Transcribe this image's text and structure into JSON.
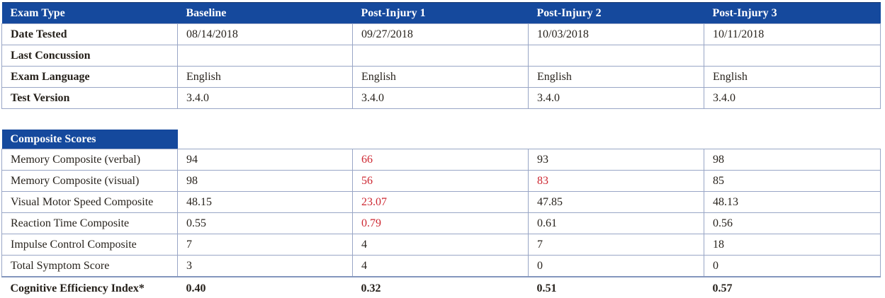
{
  "colors": {
    "header_blue": "#15499d",
    "alert_red": "#cd2832",
    "border": "#99a6c6",
    "header_text": "#ffffff",
    "body_text": "#28231d"
  },
  "exam_table": {
    "columns": [
      "Exam Type",
      "Baseline",
      "Post-Injury 1",
      "Post-Injury 2",
      "Post-Injury 3"
    ],
    "rows": [
      {
        "label": "Date Tested",
        "values": [
          "08/14/2018",
          "09/27/2018",
          "10/03/2018",
          "10/11/2018"
        ]
      },
      {
        "label": "Last Concussion",
        "values": [
          "",
          "",
          "",
          ""
        ]
      },
      {
        "label": "Exam Language",
        "values": [
          "English",
          "English",
          "English",
          "English"
        ]
      },
      {
        "label": "Test Version",
        "values": [
          "3.4.0",
          "3.4.0",
          "3.4.0",
          "3.4.0"
        ]
      }
    ]
  },
  "composite_table": {
    "title": "Composite Scores",
    "rows": [
      {
        "label": "Memory Composite (verbal)",
        "values": [
          "94",
          "66",
          "93",
          "98"
        ],
        "red": [
          false,
          true,
          false,
          false
        ]
      },
      {
        "label": "Memory Composite (visual)",
        "values": [
          "98",
          "56",
          "83",
          "85"
        ],
        "red": [
          false,
          true,
          true,
          false
        ]
      },
      {
        "label": "Visual Motor Speed Composite",
        "values": [
          "48.15",
          "23.07",
          "47.85",
          "48.13"
        ],
        "red": [
          false,
          true,
          false,
          false
        ]
      },
      {
        "label": "Reaction Time Composite",
        "values": [
          "0.55",
          "0.79",
          "0.61",
          "0.56"
        ],
        "red": [
          false,
          true,
          false,
          false
        ]
      },
      {
        "label": "Impulse Control Composite",
        "values": [
          "7",
          "4",
          "7",
          "18"
        ],
        "red": [
          false,
          false,
          false,
          false
        ]
      },
      {
        "label": "Total Symptom Score",
        "values": [
          "3",
          "4",
          "0",
          "0"
        ],
        "red": [
          false,
          false,
          false,
          false
        ]
      }
    ],
    "footer": {
      "label": "Cognitive Efficiency Index*",
      "values": [
        "0.40",
        "0.32",
        "0.51",
        "0.57"
      ]
    }
  }
}
